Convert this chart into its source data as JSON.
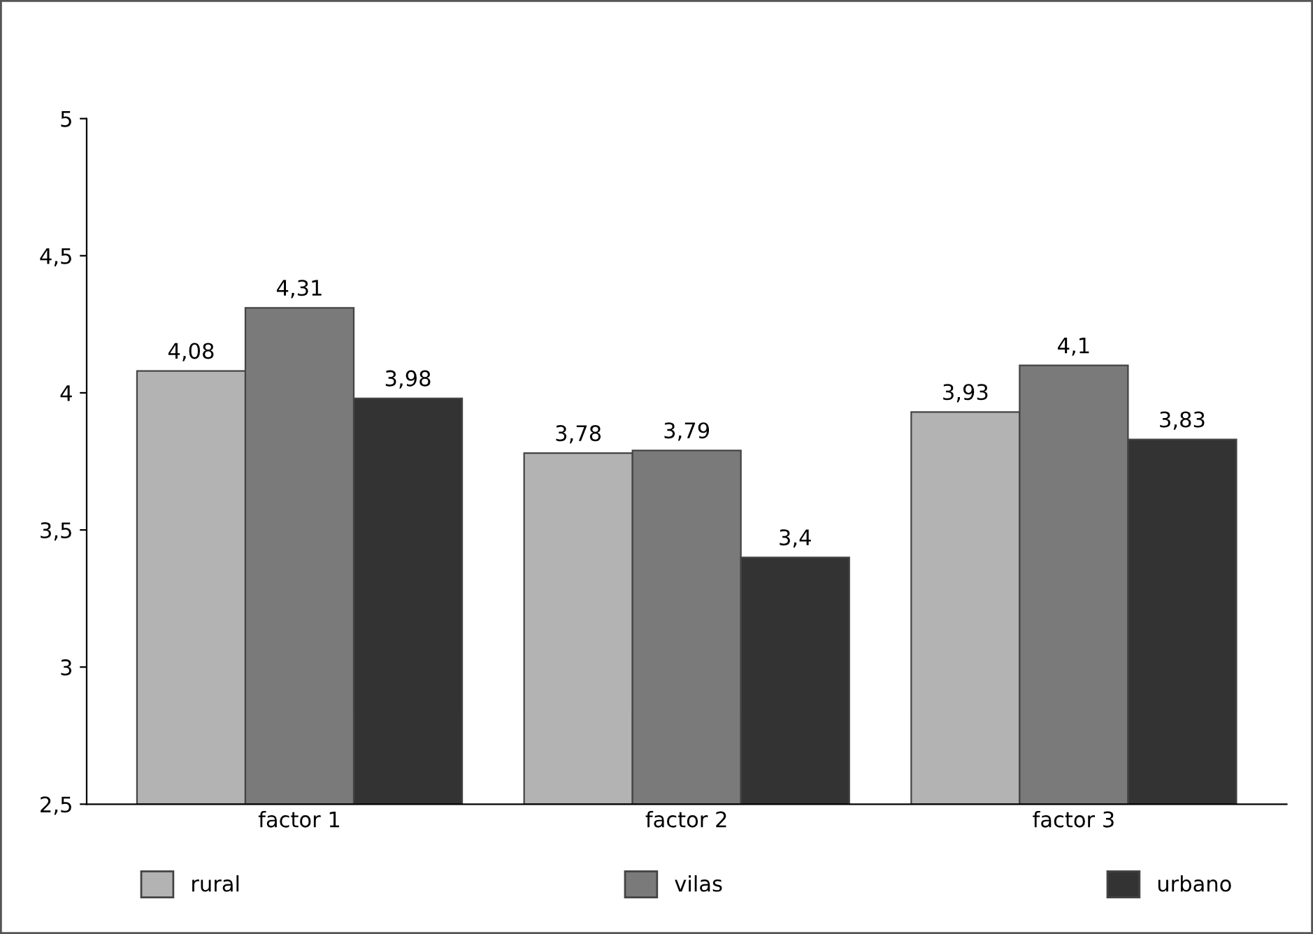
{
  "chart_data": {
    "type": "bar",
    "categories": [
      "factor 1",
      "factor 2",
      "factor 3"
    ],
    "series": [
      {
        "name": "rural",
        "color": "#b3b3b3",
        "values": [
          4.08,
          3.78,
          3.93
        ],
        "value_labels": [
          "4,08",
          "3,78",
          "3,93"
        ]
      },
      {
        "name": "vilas",
        "color": "#7a7a7a",
        "values": [
          4.31,
          3.79,
          4.1
        ],
        "value_labels": [
          "4,31",
          "3,79",
          "4,1"
        ]
      },
      {
        "name": "urbano",
        "color": "#333333",
        "values": [
          3.98,
          3.4,
          3.83
        ],
        "value_labels": [
          "3,98",
          "3,4",
          "3,83"
        ]
      }
    ],
    "ylim": [
      2.5,
      5
    ],
    "yticks": [
      {
        "value": 2.5,
        "label": "2,5"
      },
      3,
      {
        "value": 3.5,
        "label": "3,5"
      },
      4,
      {
        "value": 4.5,
        "label": "4,5"
      },
      5
    ],
    "grid": false,
    "legend": "bottom"
  }
}
